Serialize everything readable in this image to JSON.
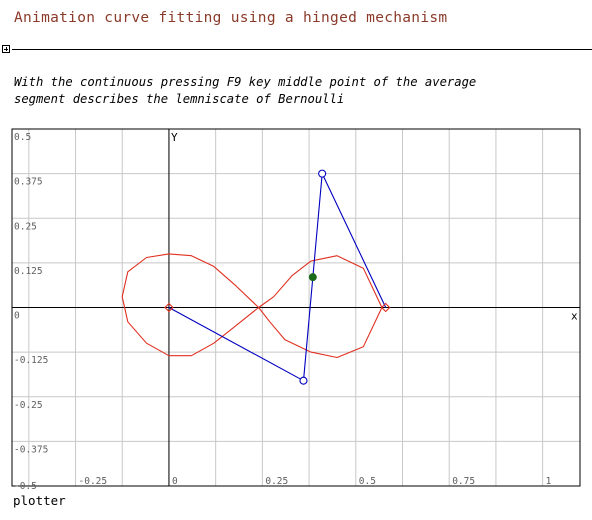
{
  "worksheet": {
    "title": "Animation curve fitting using a hinged mechanism",
    "description_line1": "With the continuous pressing F9 key middle point of the average",
    "description_line2": "segment describes the lemniscate of Bernoulli",
    "plot_caption": "plotter",
    "expander_icon": "plus-square-icon"
  },
  "chart_data": {
    "type": "line",
    "xlabel": "x",
    "ylabel": "y",
    "xlim": [
      -0.42,
      1.1
    ],
    "ylim": [
      -0.5,
      0.5
    ],
    "x_ticks": [
      -0.25,
      0,
      0.25,
      0.5,
      0.75,
      1
    ],
    "x_tick_labels": [
      "-0.25",
      "0",
      "0.25",
      "0.5",
      "0.75",
      "1"
    ],
    "y_ticks": [
      0.5,
      0.375,
      0.25,
      0.125,
      0,
      -0.125,
      -0.25,
      -0.375,
      -0.5
    ],
    "y_tick_labels": [
      "0.5",
      "0.375",
      "0.25",
      "0.125",
      "0",
      "-0.125",
      "-0.25",
      "-0.375",
      "-0.5"
    ],
    "grid": true,
    "x_grid_step": 0.125,
    "y_grid_step": 0.125,
    "series": [
      {
        "color": "#e03020",
        "style": "line",
        "x": [
          0.57,
          0.52,
          0.45,
          0.38,
          0.31,
          0.27,
          0.24,
          0.18,
          0.12,
          0.06,
          0.0,
          -0.06,
          -0.11,
          -0.125,
          -0.11,
          -0.06,
          0.0,
          0.06,
          0.12,
          0.18,
          0.24,
          0.28,
          0.33,
          0.38,
          0.45,
          0.52,
          0.57
        ],
        "y": [
          0.0,
          -0.11,
          -0.14,
          -0.125,
          -0.09,
          -0.04,
          0.0,
          0.06,
          0.115,
          0.145,
          0.15,
          0.14,
          0.1,
          0.03,
          -0.04,
          -0.1,
          -0.135,
          -0.135,
          -0.1,
          -0.05,
          0.0,
          0.03,
          0.09,
          0.13,
          0.145,
          0.11,
          0.0
        ]
      },
      {
        "color": "#0000c0",
        "style": "mechanism",
        "x": [
          0.0,
          0.36,
          0.41,
          0.58
        ],
        "y": [
          0.0,
          -0.205,
          0.375,
          0.0
        ]
      }
    ],
    "points": [
      {
        "x": 0.0,
        "y": 0.0,
        "marker": "diamond",
        "color": "#e03020"
      },
      {
        "x": 0.58,
        "y": 0.0,
        "marker": "diamond",
        "color": "#e03020"
      },
      {
        "x": 0.36,
        "y": -0.205,
        "marker": "circle",
        "color": "#0000c0"
      },
      {
        "x": 0.41,
        "y": 0.375,
        "marker": "circle",
        "color": "#0000c0"
      },
      {
        "x": 0.385,
        "y": 0.085,
        "marker": "dot",
        "color": "#1a6b1a"
      }
    ]
  }
}
